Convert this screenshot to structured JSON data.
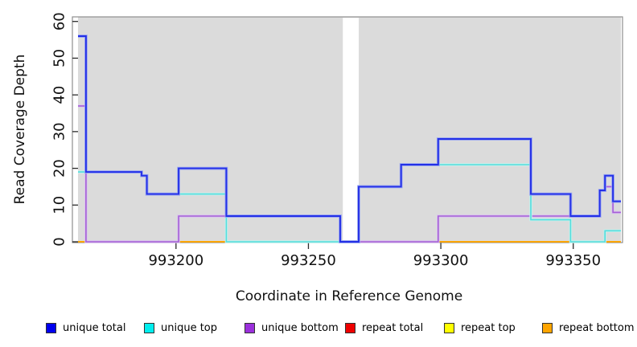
{
  "figure": {
    "xlabel": "Coordinate in Reference Genome",
    "ylabel": "Read Coverage Depth"
  },
  "chart_data": {
    "type": "line",
    "subtype": "step-coverage",
    "title": "",
    "xlabel": "Coordinate in Reference Genome",
    "ylabel": "Read Coverage Depth",
    "xlim": [
      993163,
      993368
    ],
    "ylim": [
      0,
      61.25
    ],
    "x_ticks": [
      993200,
      993250,
      993300,
      993350
    ],
    "y_ticks": [
      0,
      10,
      20,
      30,
      40,
      50,
      60
    ],
    "grid": false,
    "plot_bg": "#DBDBDB",
    "masked_region": {
      "x_start": 993263,
      "x_end": 993269
    },
    "legend_position": "bottom",
    "series": [
      {
        "name": "repeat total",
        "line_color": "#DD0000",
        "width": 1.6,
        "segments": [
          [
            993163,
            993368,
            0
          ]
        ]
      },
      {
        "name": "repeat top",
        "line_color": "#F5F500",
        "width": 1.6,
        "segments": [
          [
            993163,
            993368,
            0
          ]
        ]
      },
      {
        "name": "repeat bottom",
        "line_color": "#FFA500",
        "width": 1.8,
        "segments": [
          [
            993163,
            993368,
            0
          ]
        ]
      },
      {
        "name": "unique bottom",
        "line_color": "#A55FD6",
        "halo_color": "#D9C2F0",
        "width": 1.6,
        "segments": [
          [
            993163,
            993166,
            37
          ],
          [
            993166,
            993201,
            0
          ],
          [
            993201,
            993262,
            7
          ],
          [
            993262,
            993299,
            0
          ],
          [
            993299,
            993360,
            7
          ],
          [
            993360,
            993362,
            14
          ],
          [
            993362,
            993365,
            15
          ],
          [
            993365,
            993368,
            8
          ]
        ]
      },
      {
        "name": "unique top",
        "line_color": "#55DCDC",
        "halo_color": "#C4F2EE",
        "width": 1.6,
        "segments": [
          [
            993163,
            993187,
            19
          ],
          [
            993187,
            993189,
            18
          ],
          [
            993189,
            993219,
            13
          ],
          [
            993219,
            993269,
            0
          ],
          [
            993269,
            993285,
            15
          ],
          [
            993285,
            993334,
            21
          ],
          [
            993334,
            993349,
            6
          ],
          [
            993349,
            993362,
            0
          ],
          [
            993362,
            993368,
            3
          ]
        ]
      },
      {
        "name": "unique total",
        "line_color": "#2430E6",
        "halo_color": "#97A3F2",
        "width": 1.9,
        "segments": [
          [
            993163,
            993166,
            56
          ],
          [
            993166,
            993187,
            19
          ],
          [
            993187,
            993189,
            18
          ],
          [
            993189,
            993201,
            13
          ],
          [
            993201,
            993219,
            20
          ],
          [
            993219,
            993262,
            7
          ],
          [
            993262,
            993269,
            0
          ],
          [
            993269,
            993285,
            15
          ],
          [
            993285,
            993299,
            21
          ],
          [
            993299,
            993334,
            28
          ],
          [
            993334,
            993349,
            13
          ],
          [
            993349,
            993360,
            7
          ],
          [
            993360,
            993362,
            14
          ],
          [
            993362,
            993365,
            18
          ],
          [
            993365,
            993368,
            11
          ]
        ]
      }
    ],
    "legend": [
      {
        "label": "unique total",
        "color": "#0000EE"
      },
      {
        "label": "unique top",
        "color": "#00EEEE"
      },
      {
        "label": "unique bottom",
        "color": "#9B30DC"
      },
      {
        "label": "repeat total",
        "color": "#EE0000"
      },
      {
        "label": "repeat top",
        "color": "#FFFF00"
      },
      {
        "label": "repeat bottom",
        "color": "#FFA500"
      }
    ]
  }
}
